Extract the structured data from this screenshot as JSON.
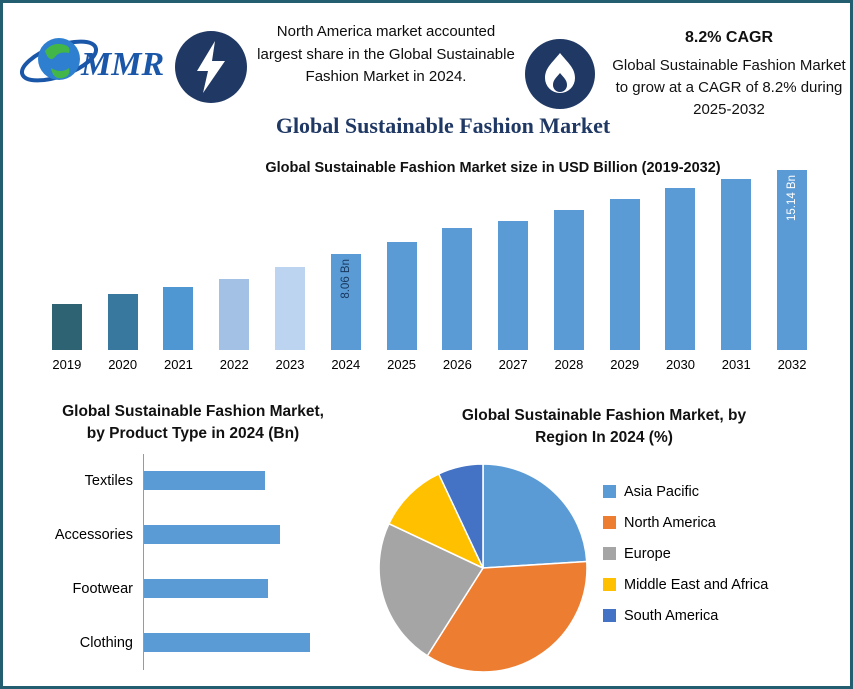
{
  "header": {
    "logo_text": "MMR",
    "callout1": "North America market accounted largest share in the Global Sustainable Fashion Market in 2024.",
    "cagr_title": "8.2% CAGR",
    "callout2": "Global Sustainable Fashion Market to grow at a CAGR of 8.2% during 2025-2032"
  },
  "title": "Global Sustainable Fashion Market",
  "colors": {
    "navy": "#1f3864",
    "border": "#235e70",
    "default_bar": "#5b9bd5"
  },
  "chart_data": [
    {
      "id": "market-size-bars",
      "type": "bar",
      "title": "Global Sustainable Fashion Market size in USD Billion (2019-2032)",
      "categories": [
        "2019",
        "2020",
        "2021",
        "2022",
        "2023",
        "2024",
        "2025",
        "2026",
        "2027",
        "2028",
        "2029",
        "2030",
        "2031",
        "2032"
      ],
      "values": [
        3.9,
        4.7,
        5.3,
        6.0,
        7.0,
        8.06,
        9.1,
        10.3,
        10.9,
        11.8,
        12.7,
        13.6,
        14.4,
        15.14
      ],
      "bar_colors": [
        "#2d6372",
        "#38789e",
        "#4f97d2",
        "#a3c1e5",
        "#bcd4ef",
        "#5b9bd5",
        "#5b9bd5",
        "#5b9bd5",
        "#5b9bd5",
        "#5b9bd5",
        "#5b9bd5",
        "#5b9bd5",
        "#5b9bd5",
        "#5b9bd5"
      ],
      "annotations": [
        {
          "category": "2024",
          "text": "8.06 Bn",
          "color": "#17375e"
        },
        {
          "category": "2032",
          "text": "15.14 Bn",
          "color": "#ffffff"
        }
      ],
      "ylabel": "USD Billion",
      "ylim": [
        0,
        16
      ],
      "grid": false
    },
    {
      "id": "product-type-bars",
      "type": "bar",
      "orientation": "horizontal",
      "title": "Global Sustainable Fashion Market, by Product Type in 2024 (Bn)",
      "title_lines": [
        "Global Sustainable Fashion Market,",
        "by Product Type in 2024 (Bn)"
      ],
      "categories": [
        "Textiles",
        "Accessories",
        "Footwear",
        "Clothing"
      ],
      "values": [
        2.05,
        2.3,
        2.1,
        2.8
      ],
      "bar_color": "#5b9bd5",
      "xlim": [
        0,
        3.5
      ],
      "grid": false
    },
    {
      "id": "region-pie",
      "type": "pie",
      "title": "Global Sustainable Fashion Market, by Region In 2024 (%)",
      "title_lines": [
        "Global Sustainable Fashion Market, by",
        "Region In 2024 (%)"
      ],
      "slices": [
        {
          "label": "Asia Pacific",
          "value": 24,
          "color": "#5b9bd5"
        },
        {
          "label": "North America",
          "value": 35,
          "color": "#ed7d31"
        },
        {
          "label": "Europe",
          "value": 23,
          "color": "#a5a5a5"
        },
        {
          "label": "Middle East and Africa",
          "value": 11,
          "color": "#ffc000"
        },
        {
          "label": "South America",
          "value": 7,
          "color": "#4472c4"
        }
      ],
      "legend_position": "right"
    }
  ]
}
